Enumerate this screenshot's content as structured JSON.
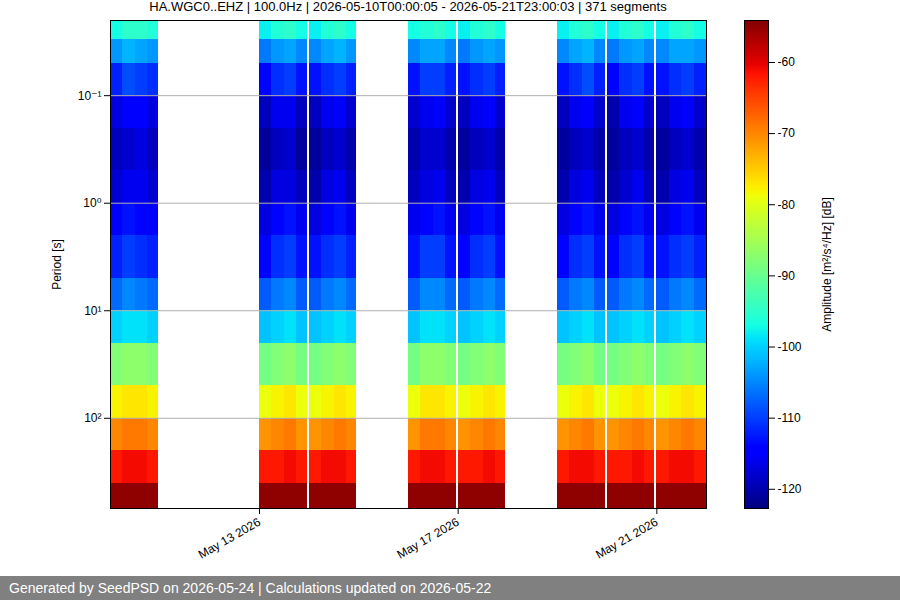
{
  "chart_data": {
    "type": "heatmap",
    "title": "HA.WGC0..EHZ | 100.0Hz | 2026-05-10T00:00:05 - 2026-05-21T23:00:03 | 371 segments",
    "caption": "Generated by SeedPSD on 2026-05-24 | Calculations updated on 2026-05-22",
    "ylabel": "Period [s]",
    "log": "y",
    "grid": true,
    "color": "jet",
    "xlim": [
      "2026-05-10T00:00Z",
      "2026-05-22T00:00Z"
    ],
    "xticks": [
      {
        "value": "2026-05-13T00:00Z",
        "label": "May 13 2026"
      },
      {
        "value": "2026-05-17T00:00Z",
        "label": "May 17 2026"
      },
      {
        "value": "2026-05-21T00:00Z",
        "label": "May 21 2026"
      }
    ],
    "ylim": [
      0.02,
      690
    ],
    "yticks": [
      {
        "value": 0.1,
        "label": "10⁻¹"
      },
      {
        "value": 1,
        "label": "10⁰"
      },
      {
        "value": 10,
        "label": "10¹"
      },
      {
        "value": 100,
        "label": "10²"
      }
    ],
    "period_edges": [
      0.02,
      0.03,
      0.05,
      0.1,
      0.2,
      0.5,
      1,
      2,
      5,
      10,
      20,
      50,
      100,
      200,
      400,
      690
    ],
    "x": [
      "2026-05-10T00:00Z",
      "2026-05-10T06:00Z",
      "2026-05-10T12:00Z",
      "2026-05-10T18:00Z",
      "2026-05-13T00:00Z",
      "2026-05-13T06:00Z",
      "2026-05-13T12:00Z",
      "2026-05-13T18:00Z",
      "2026-05-14T00:00Z",
      "2026-05-14T06:00Z",
      "2026-05-14T12:00Z",
      "2026-05-14T18:00Z",
      "2026-05-16T00:00Z",
      "2026-05-16T06:00Z",
      "2026-05-16T12:00Z",
      "2026-05-16T18:00Z",
      "2026-05-17T00:00Z",
      "2026-05-17T06:00Z",
      "2026-05-17T12:00Z",
      "2026-05-17T18:00Z",
      "2026-05-19T00:00Z",
      "2026-05-19T06:00Z",
      "2026-05-19T12:00Z",
      "2026-05-19T18:00Z",
      "2026-05-20T00:00Z",
      "2026-05-20T06:00Z",
      "2026-05-20T12:00Z",
      "2026-05-20T18:00Z",
      "2026-05-21T00:00Z",
      "2026-05-21T06:00Z",
      "2026-05-21T12:00Z",
      "2026-05-21T18:00Z"
    ],
    "x_end": [
      "2026-05-10T06:00Z",
      "2026-05-10T12:00Z",
      "2026-05-10T18:00Z",
      "2026-05-10T23:00Z",
      "2026-05-13T06:00Z",
      "2026-05-13T12:00Z",
      "2026-05-13T18:00Z",
      "2026-05-13T23:00Z",
      "2026-05-14T06:00Z",
      "2026-05-14T12:00Z",
      "2026-05-14T18:00Z",
      "2026-05-14T23:00Z",
      "2026-05-16T06:00Z",
      "2026-05-16T12:00Z",
      "2026-05-16T18:00Z",
      "2026-05-16T23:00Z",
      "2026-05-17T06:00Z",
      "2026-05-17T12:00Z",
      "2026-05-17T18:00Z",
      "2026-05-17T23:00Z",
      "2026-05-19T06:00Z",
      "2026-05-19T12:00Z",
      "2026-05-19T18:00Z",
      "2026-05-19T23:00Z",
      "2026-05-20T06:00Z",
      "2026-05-20T12:00Z",
      "2026-05-20T18:00Z",
      "2026-05-20T23:00Z",
      "2026-05-21T06:00Z",
      "2026-05-21T12:00Z",
      "2026-05-21T18:00Z",
      "2026-05-22T00:00Z"
    ],
    "values": [
      [
        -97,
        -104,
        -112,
        -117,
        -119,
        -118,
        -115,
        -112,
        -107,
        -100,
        -88,
        -78,
        -70,
        -62,
        -55
      ],
      [
        -95,
        -102,
        -109,
        -115,
        -118,
        -116,
        -113,
        -110,
        -105,
        -99,
        -87,
        -77,
        -69,
        -61,
        -55
      ],
      [
        -95,
        -103,
        -110,
        -115,
        -117,
        -116,
        -114,
        -111,
        -106,
        -99,
        -87,
        -77,
        -69,
        -61,
        -55
      ],
      [
        -96,
        -104,
        -111,
        -117,
        -119,
        -118,
        -115,
        -112,
        -107,
        -100,
        -88,
        -78,
        -70,
        -62,
        -55
      ],
      [
        -98,
        -106,
        -114,
        -119,
        -121,
        -120,
        -117,
        -114,
        -108,
        -101,
        -89,
        -79,
        -71,
        -62,
        -55
      ],
      [
        -96,
        -104,
        -111,
        -116,
        -119,
        -117,
        -114,
        -111,
        -106,
        -100,
        -88,
        -78,
        -70,
        -62,
        -55
      ],
      [
        -95,
        -103,
        -110,
        -116,
        -118,
        -117,
        -113,
        -110,
        -105,
        -99,
        -87,
        -77,
        -69,
        -61,
        -55
      ],
      [
        -97,
        -105,
        -113,
        -119,
        -121,
        -119,
        -116,
        -113,
        -108,
        -101,
        -89,
        -79,
        -71,
        -62,
        -55
      ],
      [
        -98,
        -105,
        -113,
        -119,
        -121,
        -120,
        -117,
        -113,
        -108,
        -101,
        -89,
        -79,
        -71,
        -62,
        -55
      ],
      [
        -96,
        -103,
        -111,
        -116,
        -119,
        -117,
        -114,
        -111,
        -106,
        -100,
        -88,
        -78,
        -70,
        -61,
        -55
      ],
      [
        -95,
        -102,
        -110,
        -115,
        -118,
        -116,
        -113,
        -110,
        -105,
        -99,
        -87,
        -77,
        -69,
        -61,
        -55
      ],
      [
        -97,
        -104,
        -112,
        -118,
        -120,
        -119,
        -116,
        -112,
        -107,
        -100,
        -88,
        -78,
        -70,
        -62,
        -55
      ],
      [
        -97,
        -105,
        -113,
        -118,
        -120,
        -119,
        -116,
        -113,
        -108,
        -101,
        -89,
        -79,
        -71,
        -62,
        -55
      ],
      [
        -96,
        -103,
        -110,
        -116,
        -118,
        -117,
        -114,
        -110,
        -105,
        -99,
        -87,
        -77,
        -69,
        -61,
        -55
      ],
      [
        -95,
        -103,
        -110,
        -115,
        -118,
        -116,
        -113,
        -110,
        -105,
        -99,
        -87,
        -77,
        -69,
        -61,
        -55
      ],
      [
        -97,
        -105,
        -112,
        -118,
        -120,
        -119,
        -116,
        -113,
        -107,
        -100,
        -88,
        -78,
        -70,
        -62,
        -55
      ],
      [
        -98,
        -106,
        -113,
        -119,
        -121,
        -120,
        -117,
        -114,
        -108,
        -101,
        -89,
        -79,
        -71,
        -62,
        -55
      ],
      [
        -96,
        -104,
        -111,
        -116,
        -119,
        -117,
        -114,
        -111,
        -106,
        -100,
        -88,
        -78,
        -70,
        -62,
        -55
      ],
      [
        -95,
        -103,
        -110,
        -115,
        -118,
        -116,
        -113,
        -110,
        -105,
        -99,
        -87,
        -77,
        -69,
        -61,
        -55
      ],
      [
        -97,
        -104,
        -112,
        -118,
        -120,
        -119,
        -116,
        -113,
        -107,
        -100,
        -88,
        -78,
        -70,
        -62,
        -55
      ],
      [
        -98,
        -105,
        -113,
        -119,
        -121,
        -120,
        -117,
        -114,
        -108,
        -101,
        -89,
        -79,
        -71,
        -62,
        -55
      ],
      [
        -96,
        -103,
        -111,
        -116,
        -119,
        -117,
        -114,
        -111,
        -106,
        -100,
        -88,
        -78,
        -70,
        -61,
        -55
      ],
      [
        -95,
        -102,
        -109,
        -115,
        -118,
        -116,
        -113,
        -110,
        -105,
        -99,
        -87,
        -77,
        -69,
        -61,
        -55
      ],
      [
        -97,
        -105,
        -112,
        -118,
        -120,
        -119,
        -116,
        -113,
        -108,
        -101,
        -89,
        -79,
        -71,
        -62,
        -55
      ],
      [
        -98,
        -106,
        -114,
        -120,
        -121,
        -120,
        -117,
        -114,
        -108,
        -101,
        -89,
        -79,
        -71,
        -62,
        -55
      ],
      [
        -96,
        -104,
        -111,
        -116,
        -119,
        -118,
        -114,
        -111,
        -106,
        -100,
        -88,
        -78,
        -70,
        -62,
        -55
      ],
      [
        -95,
        -103,
        -110,
        -115,
        -118,
        -116,
        -113,
        -110,
        -105,
        -99,
        -87,
        -77,
        -69,
        -61,
        -55
      ],
      [
        -97,
        -105,
        -113,
        -118,
        -120,
        -119,
        -116,
        -113,
        -107,
        -100,
        -88,
        -78,
        -70,
        -62,
        -55
      ],
      [
        -98,
        -105,
        -113,
        -119,
        -121,
        -120,
        -117,
        -113,
        -108,
        -101,
        -89,
        -79,
        -71,
        -62,
        -55
      ],
      [
        -96,
        -103,
        -111,
        -116,
        -119,
        -117,
        -114,
        -111,
        -106,
        -100,
        -88,
        -78,
        -70,
        -61,
        -55
      ],
      [
        -95,
        -103,
        -110,
        -115,
        -118,
        -116,
        -113,
        -110,
        -105,
        -99,
        -87,
        -77,
        -69,
        -61,
        -55
      ],
      [
        -97,
        -104,
        -112,
        -118,
        -120,
        -119,
        -116,
        -112,
        -107,
        -100,
        -88,
        -78,
        -70,
        -62,
        -55
      ]
    ],
    "colorbar": {
      "label": "Amplitude [m²/s⁴/Hz] [dB]",
      "range": [
        -122.7,
        -54.1
      ],
      "ticks": [
        -120,
        -110,
        -100,
        -90,
        -80,
        -70,
        -60
      ]
    }
  }
}
